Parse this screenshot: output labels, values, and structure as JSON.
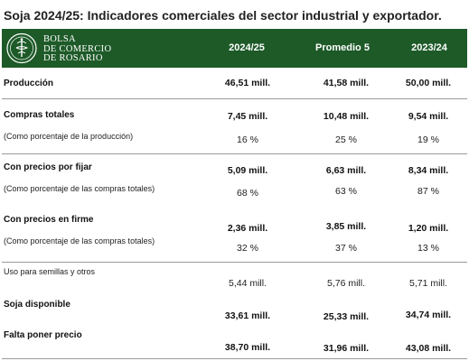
{
  "title": "Soja 2024/25: Indicadores comerciales del sector industrial y exportador.",
  "logo": {
    "line1": "BOLSA",
    "line2": "DE COMERCIO",
    "line3": "DE ROSARIO"
  },
  "columns": [
    "2024/25",
    "Promedio 5",
    "2023/24"
  ],
  "rows": {
    "produccion": {
      "label": "Producción",
      "values": [
        "46,51 mill.",
        "41,58 mill.",
        "50,00 mill."
      ]
    },
    "compras": {
      "label": "Compras totales",
      "sublabel": "(Como porcentaje de la producción)",
      "values": [
        "7,45 mill.",
        "10,48 mill.",
        "9,54 mill."
      ],
      "pcts": [
        "16 %",
        "25 %",
        "19 %"
      ]
    },
    "por_fijar": {
      "label": "Con precios por fijar",
      "sublabel": "(Como porcentaje de las compras totales)",
      "values": [
        "5,09 mill.",
        "6,63 mill.",
        "8,34 mill."
      ],
      "pcts": [
        "68 %",
        "63 %",
        "87 %"
      ]
    },
    "en_firme": {
      "label": "Con precios en firme",
      "sublabel": "(Como porcentaje de las compras totales)",
      "values": [
        "2,36 mill.",
        "3,85 mill.",
        "1,20 mill."
      ],
      "pcts": [
        "32 %",
        "37 %",
        "13 %"
      ]
    },
    "semillas": {
      "label": "Uso para semillas y otros",
      "values": [
        "5,44 mill.",
        "5,76 mill.",
        "5,71 mill."
      ]
    },
    "disponible": {
      "label": "Soja disponible",
      "values": [
        "33,61 mill.",
        "25,33 mill.",
        "34,74 mill."
      ]
    },
    "falta": {
      "label": "Falta poner precio",
      "values": [
        "38,70 mill.",
        "31,96 mill.",
        "43,08 mill."
      ]
    }
  },
  "colors": {
    "header_bg": "#1d5a28",
    "header_text": "#ffffff"
  }
}
